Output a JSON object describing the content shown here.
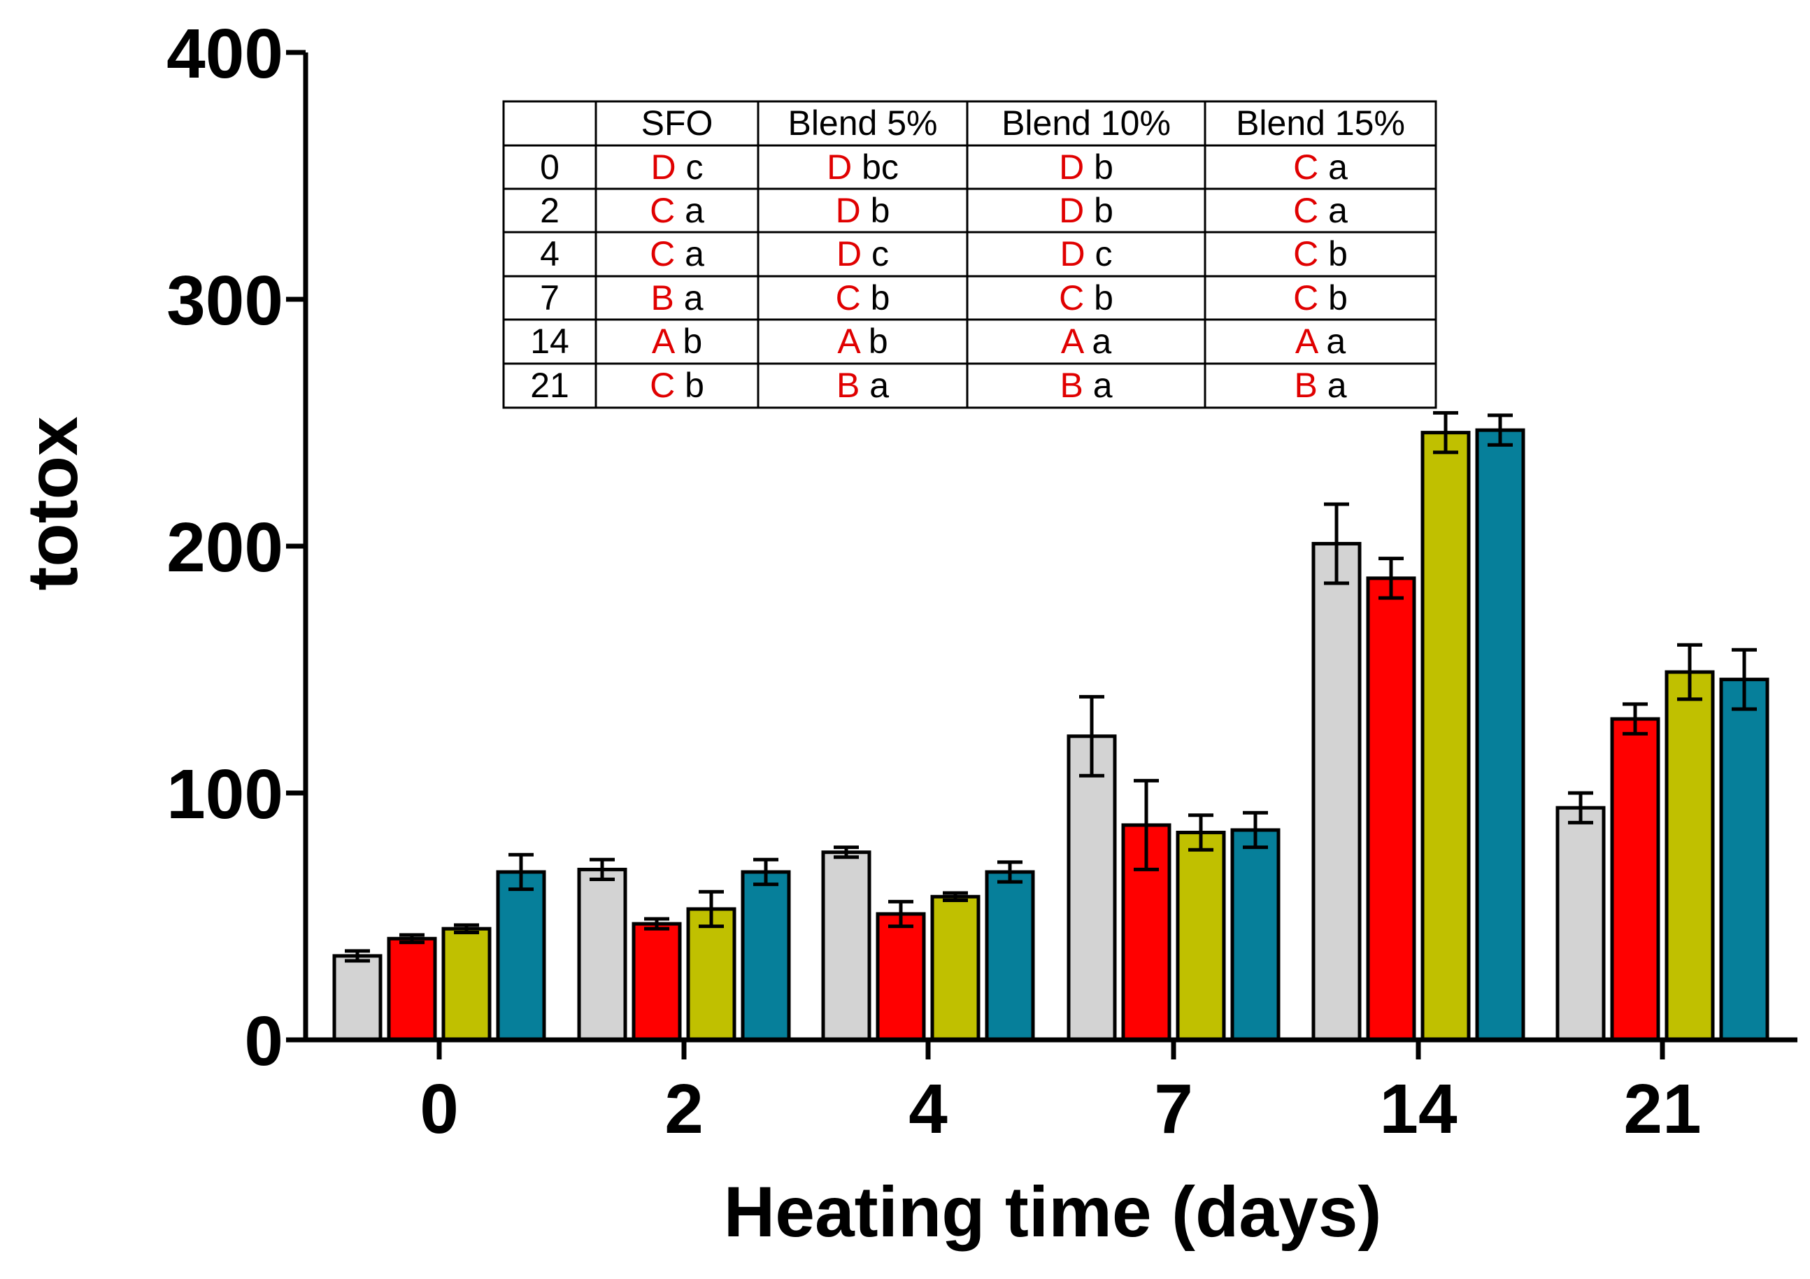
{
  "chart_data": {
    "type": "bar",
    "title": "",
    "xlabel": "Heating time (days)",
    "ylabel": "totox",
    "ylim": [
      0,
      400
    ],
    "yticks": [
      0,
      100,
      200,
      300,
      400
    ],
    "categories": [
      "0",
      "2",
      "4",
      "7",
      "14",
      "21"
    ],
    "series": [
      {
        "name": "SFO",
        "color": "#d3d3d3",
        "values": [
          34,
          69,
          76,
          123,
          201,
          94
        ],
        "errors": [
          2,
          4,
          2,
          16,
          16,
          6
        ]
      },
      {
        "name": "Blend 5%",
        "color": "#ff0000",
        "values": [
          41,
          47,
          51,
          87,
          187,
          130
        ],
        "errors": [
          1.5,
          2,
          5,
          18,
          8,
          6
        ]
      },
      {
        "name": "Blend 10%",
        "color": "#c0c000",
        "values": [
          45,
          53,
          58,
          84,
          246,
          149
        ],
        "errors": [
          1.5,
          7,
          1.5,
          7,
          8,
          11
        ]
      },
      {
        "name": "Blend 15%",
        "color": "#067f9a",
        "values": [
          68,
          68,
          68,
          85,
          247,
          146
        ],
        "errors": [
          7,
          5,
          4,
          7,
          6,
          12
        ]
      }
    ]
  },
  "letters_table": {
    "headers": [
      "",
      "SFO",
      "Blend 5%",
      "Blend 10%",
      "Blend 15%"
    ],
    "rows": [
      {
        "day": "0",
        "cells": [
          {
            "upper": "D",
            "lower": "c"
          },
          {
            "upper": "D",
            "lower": "bc"
          },
          {
            "upper": "D",
            "lower": "b"
          },
          {
            "upper": "C",
            "lower": "a"
          }
        ]
      },
      {
        "day": "2",
        "cells": [
          {
            "upper": "C",
            "lower": "a"
          },
          {
            "upper": "D",
            "lower": "b"
          },
          {
            "upper": "D",
            "lower": "b"
          },
          {
            "upper": "C",
            "lower": "a"
          }
        ]
      },
      {
        "day": "4",
        "cells": [
          {
            "upper": "C",
            "lower": "a"
          },
          {
            "upper": "D",
            "lower": "c"
          },
          {
            "upper": "D",
            "lower": "c"
          },
          {
            "upper": "C",
            "lower": "b"
          }
        ]
      },
      {
        "day": "7",
        "cells": [
          {
            "upper": "B",
            "lower": "a"
          },
          {
            "upper": "C",
            "lower": "b"
          },
          {
            "upper": "C",
            "lower": "b"
          },
          {
            "upper": "C",
            "lower": "b"
          }
        ]
      },
      {
        "day": "14",
        "cells": [
          {
            "upper": "A",
            "lower": "b"
          },
          {
            "upper": "A",
            "lower": "b"
          },
          {
            "upper": "A",
            "lower": "a"
          },
          {
            "upper": "A",
            "lower": "a"
          }
        ]
      },
      {
        "day": "21",
        "cells": [
          {
            "upper": "C",
            "lower": "b"
          },
          {
            "upper": "B",
            "lower": "a"
          },
          {
            "upper": "B",
            "lower": "a"
          },
          {
            "upper": "B",
            "lower": "a"
          }
        ]
      }
    ]
  }
}
